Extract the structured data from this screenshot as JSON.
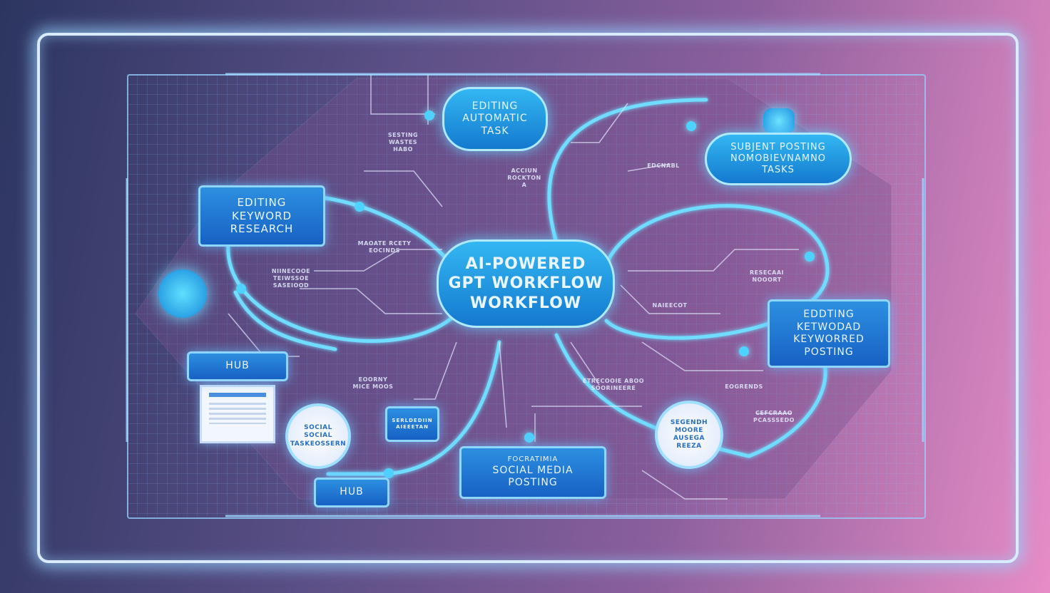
{
  "diagram": {
    "center": {
      "lines": [
        "AI-POWERED",
        "GPT WORKFLOW",
        "WORKFLOW"
      ]
    },
    "top_pill": {
      "lines": [
        "EDITING",
        "AUTOMATIC",
        "TASK"
      ]
    },
    "right_top_pill": {
      "lines": [
        "SUBJENT POSTING",
        "NOMOBIEVNAMNO",
        "TASKS"
      ]
    },
    "left_box": {
      "lines": [
        "EDITING",
        "KEYWORD",
        "RESEARCH"
      ]
    },
    "right_box": {
      "lines": [
        "EDDTING",
        "KETWODAD",
        "KEYWORRED",
        "POSTING"
      ]
    },
    "bottom_box": {
      "lines": [
        "FOCRATIMIA",
        "SOCIAL MEDIA",
        "POSTING"
      ]
    },
    "hub_top": "HUB",
    "hub_bottom": "HUB",
    "left_circle": {
      "lines": [
        "SOCIAL",
        "SOCIAL",
        "TASKEOSSERN"
      ]
    },
    "right_circle": {
      "lines": [
        "SEGENDH",
        "MOORE",
        "AUSEGA",
        "REEZA"
      ]
    },
    "small_box": {
      "lines": [
        "SERLDEDIIN",
        "AIEEETAN"
      ]
    },
    "annotations": [
      {
        "id": "a1",
        "lines": [
          "SESTING",
          "WASTES",
          "HABO"
        ]
      },
      {
        "id": "a2",
        "lines": [
          "ACCIUN",
          "ROCKTON",
          "A"
        ]
      },
      {
        "id": "a3",
        "lines": [
          "EDCNABL"
        ]
      },
      {
        "id": "a4",
        "lines": [
          "MAOATE RCETY",
          "EOCINDS"
        ]
      },
      {
        "id": "a5",
        "lines": [
          "NIINECOOE",
          "TEIWSSOE",
          "SASEIOOD"
        ]
      },
      {
        "id": "a6",
        "lines": [
          "RESECAAI",
          "NOOORT"
        ]
      },
      {
        "id": "a7",
        "lines": [
          "NAIEECOT"
        ]
      },
      {
        "id": "a8",
        "lines": [
          "EOORNY",
          "MICE MOOS"
        ]
      },
      {
        "id": "a9",
        "lines": [
          "ETRECOOIE ABOO",
          "SOORINEERE"
        ]
      },
      {
        "id": "a10",
        "lines": [
          "EOGRENDS"
        ]
      },
      {
        "id": "a11",
        "lines": [
          "CEFCRAAO",
          "PCASSSEDO"
        ]
      }
    ]
  }
}
